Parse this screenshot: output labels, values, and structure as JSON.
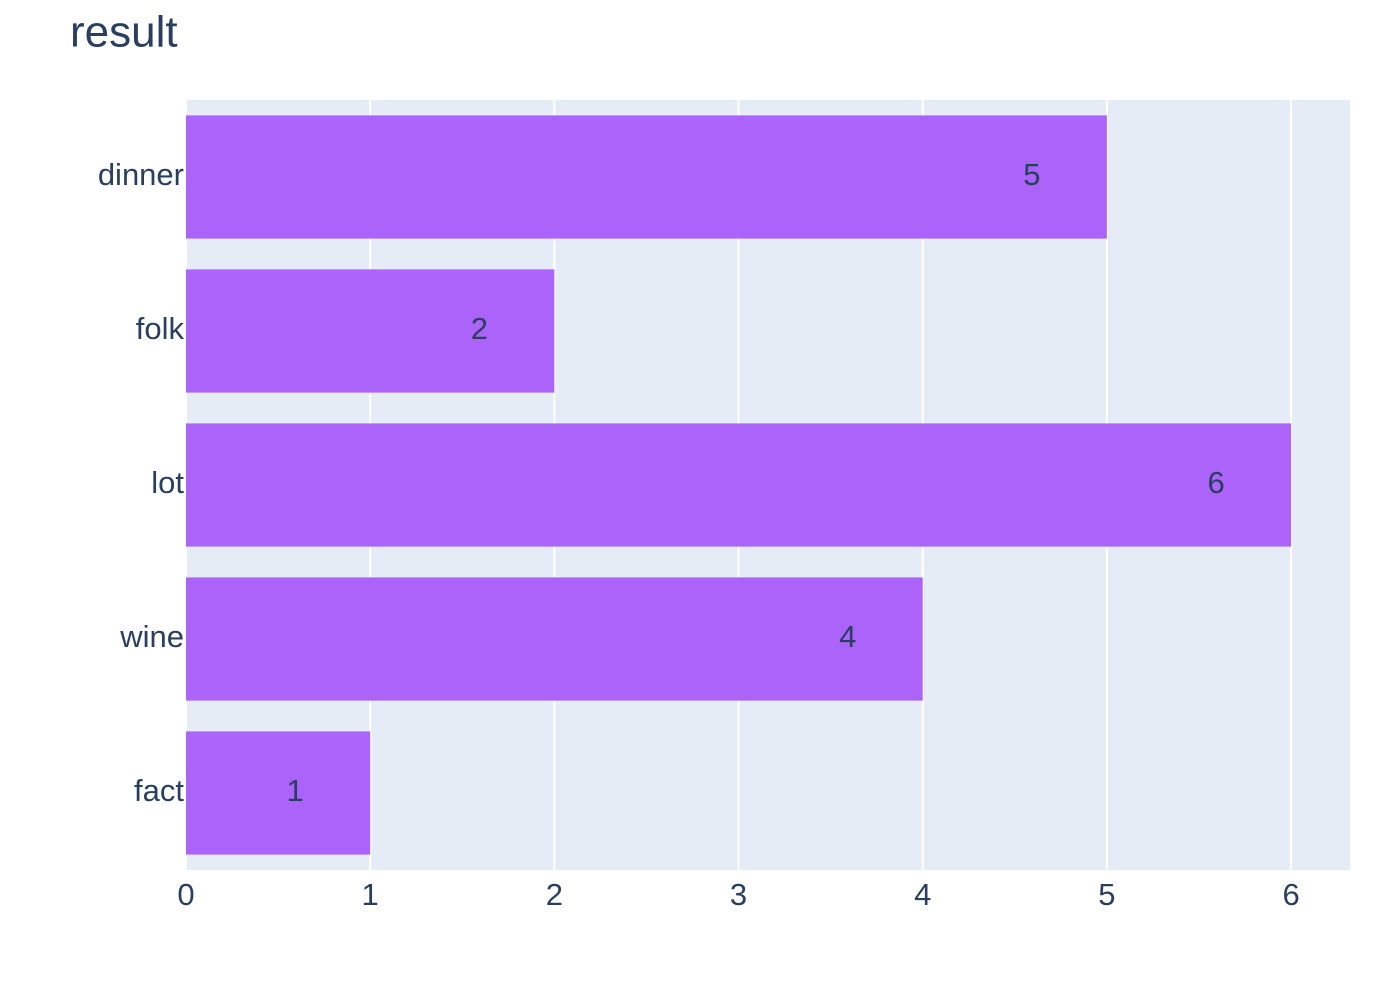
{
  "chart_data": {
    "type": "bar",
    "orientation": "horizontal",
    "title": "result",
    "categories": [
      "dinner",
      "folk",
      "lot",
      "wine",
      "fact"
    ],
    "values": [
      5,
      2,
      6,
      4,
      1
    ],
    "color": "#ab63fa",
    "xlim": [
      0,
      6.32
    ],
    "xticks": [
      0,
      1,
      2,
      3,
      4,
      5,
      6
    ],
    "grid": true
  }
}
